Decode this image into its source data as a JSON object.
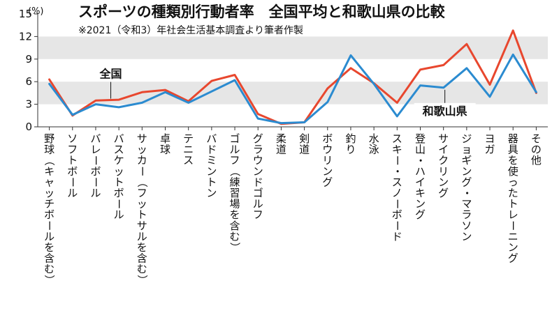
{
  "chart_data": {
    "type": "line",
    "title": "スポーツの種類別行動者率　全国平均と和歌山県の比較",
    "subtitle": "※2021（令和3）年社会生活基本調査より筆者作製",
    "y_unit": "(%)",
    "ylim": [
      0,
      15
    ],
    "y_ticks": [
      "0",
      "3",
      "6",
      "9",
      "12",
      "15"
    ],
    "categories": [
      "野球（キャッチボールを含む）",
      "ソフトボール",
      "バレーボール",
      "バスケットボール",
      "サッカー（フットサルを含む）",
      "卓球",
      "テニス",
      "バドミントン",
      "ゴルフ（練習場を含む）",
      "グラウンドゴルフ",
      "柔道",
      "剣道",
      "ボウリング",
      "釣り",
      "水泳",
      "スキー・スノーボード",
      "登山・ハイキング",
      "サイクリング",
      "ジョギング・マラソン",
      "ヨガ",
      "器具を使ったトレーニング",
      "その他"
    ],
    "series": [
      {
        "name": "全国",
        "color": "#e8472e",
        "values": [
          6.3,
          1.5,
          3.5,
          3.6,
          4.6,
          4.9,
          3.4,
          6.1,
          6.9,
          1.7,
          0.4,
          0.6,
          5.1,
          7.8,
          5.8,
          3.2,
          7.6,
          8.2,
          11.0,
          5.6,
          12.8,
          4.5
        ]
      },
      {
        "name": "和歌山県",
        "color": "#2b8bd0",
        "values": [
          5.7,
          1.6,
          3.0,
          2.6,
          3.2,
          4.6,
          3.2,
          4.7,
          6.2,
          1.1,
          0.5,
          0.6,
          3.3,
          9.5,
          5.7,
          1.4,
          5.5,
          5.2,
          7.8,
          4.0,
          9.6,
          4.6
        ]
      }
    ]
  }
}
